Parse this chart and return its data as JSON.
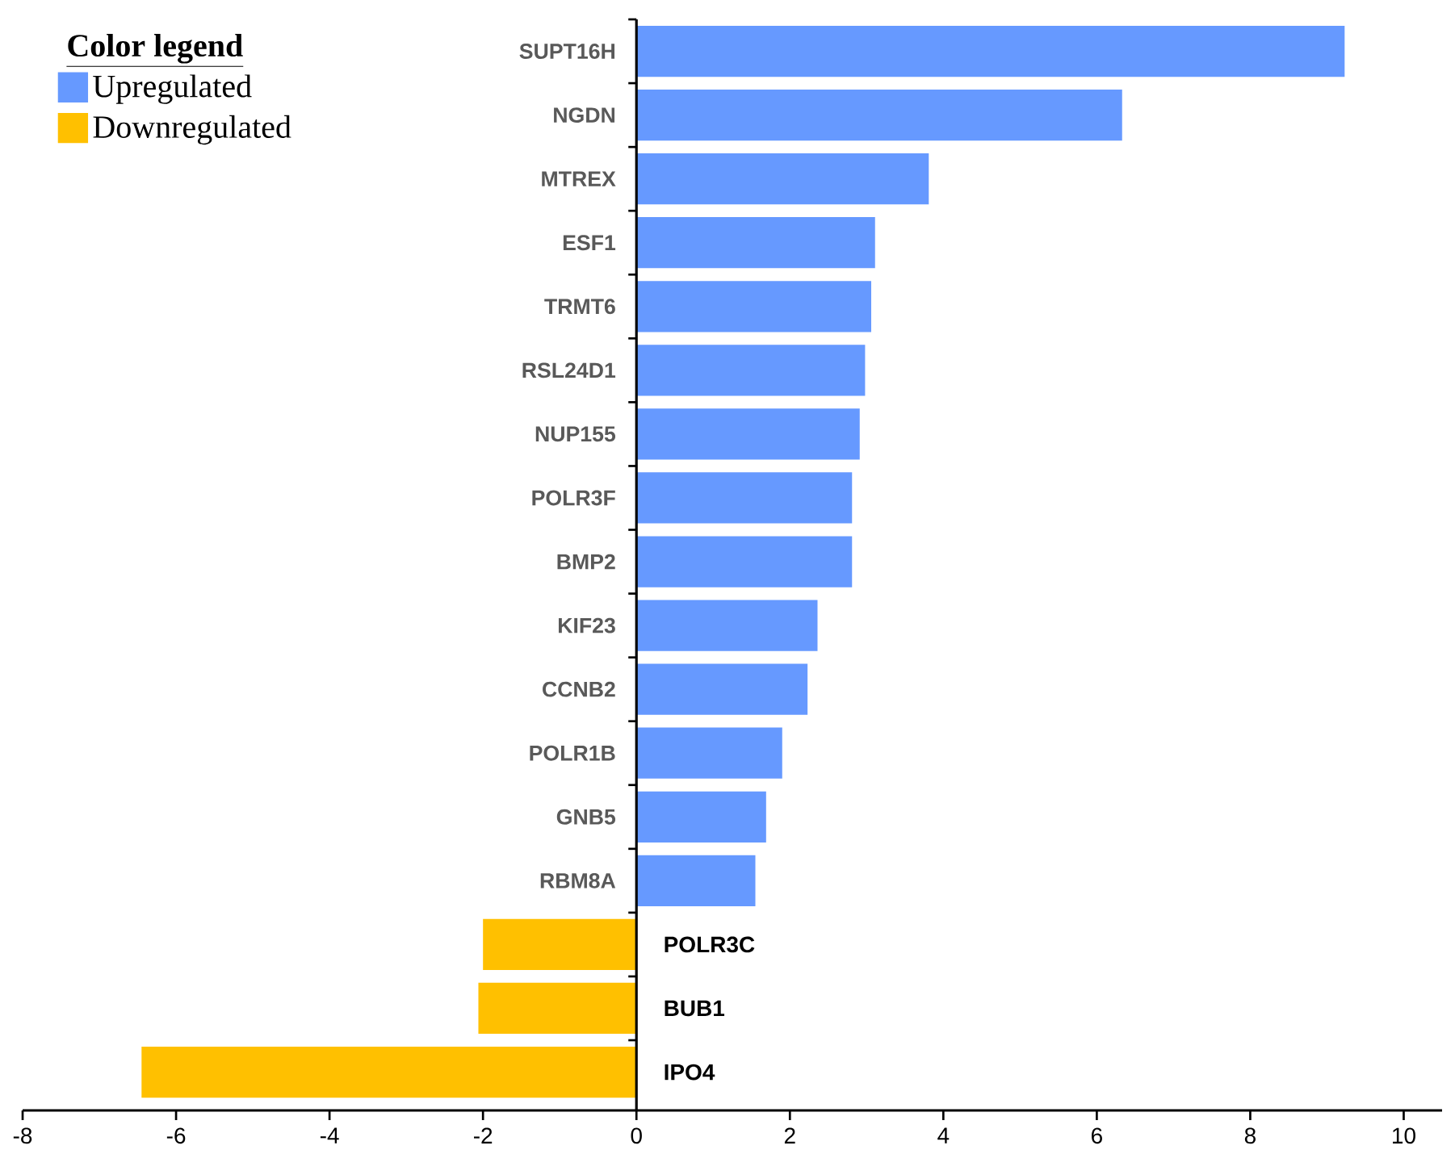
{
  "chart_data": {
    "type": "bar",
    "orientation": "horizontal",
    "categories": [
      "SUPT16H",
      "NGDN",
      "MTREX",
      "ESF1",
      "TRMT6",
      "RSL24D1",
      "NUP155",
      "POLR3F",
      "BMP2",
      "KIF23",
      "CCNB2",
      "POLR1B",
      "GNB5",
      "RBM8A",
      "POLR3C",
      "BUB1",
      "IPO4"
    ],
    "series": [
      {
        "name": "Upregulated",
        "color": "#6699ff",
        "values": [
          9.23,
          6.33,
          3.81,
          3.11,
          3.06,
          2.98,
          2.91,
          2.81,
          2.81,
          2.36,
          2.23,
          1.9,
          1.69,
          1.55,
          null,
          null,
          null
        ]
      },
      {
        "name": "Downregulated",
        "color": "#ffc000",
        "values": [
          null,
          null,
          null,
          null,
          null,
          null,
          null,
          null,
          null,
          null,
          null,
          null,
          null,
          null,
          -2.0,
          -2.06,
          -6.45
        ]
      }
    ],
    "legend_title": "Color legend",
    "legend": "top left",
    "xlim": [
      -8,
      10.5
    ],
    "xticks": [
      -8,
      -6,
      -4,
      -2,
      0,
      2,
      4,
      6,
      8,
      10
    ]
  }
}
